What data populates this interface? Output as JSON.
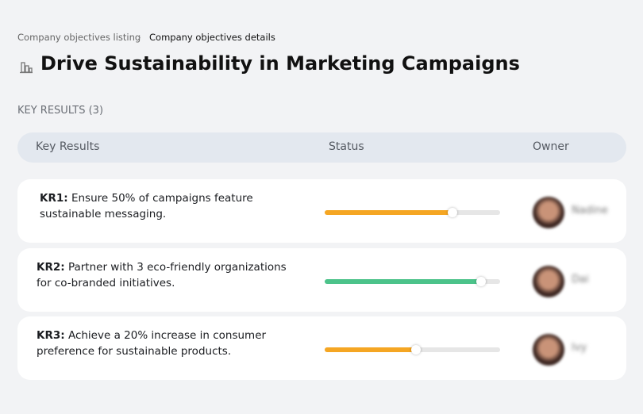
{
  "breadcrumb": {
    "parent": "Company objectives listing",
    "current": "Company objectives details"
  },
  "title": "Drive Sustainability in Marketing Campaigns",
  "section_title": "KEY RESULTS (3)",
  "table": {
    "headers": [
      "Key Results",
      "Status",
      "Owner"
    ],
    "rows": [
      {
        "label": "KR1:",
        "text": "Ensure 50% of campaigns feature sustainable messaging.",
        "progress": 73,
        "color": "#f5a623",
        "owner": "Nadine"
      },
      {
        "label": "KR2:",
        "text": "Partner with 3 eco-friendly organizations for co-branded initiatives.",
        "progress": 89,
        "color": "#4cc38a",
        "owner": "Dai"
      },
      {
        "label": "KR3:",
        "text": "Achieve a 20% increase in consumer preference for sustainable products.",
        "progress": 52,
        "color": "#f5a623",
        "owner": "Ivy"
      }
    ]
  }
}
